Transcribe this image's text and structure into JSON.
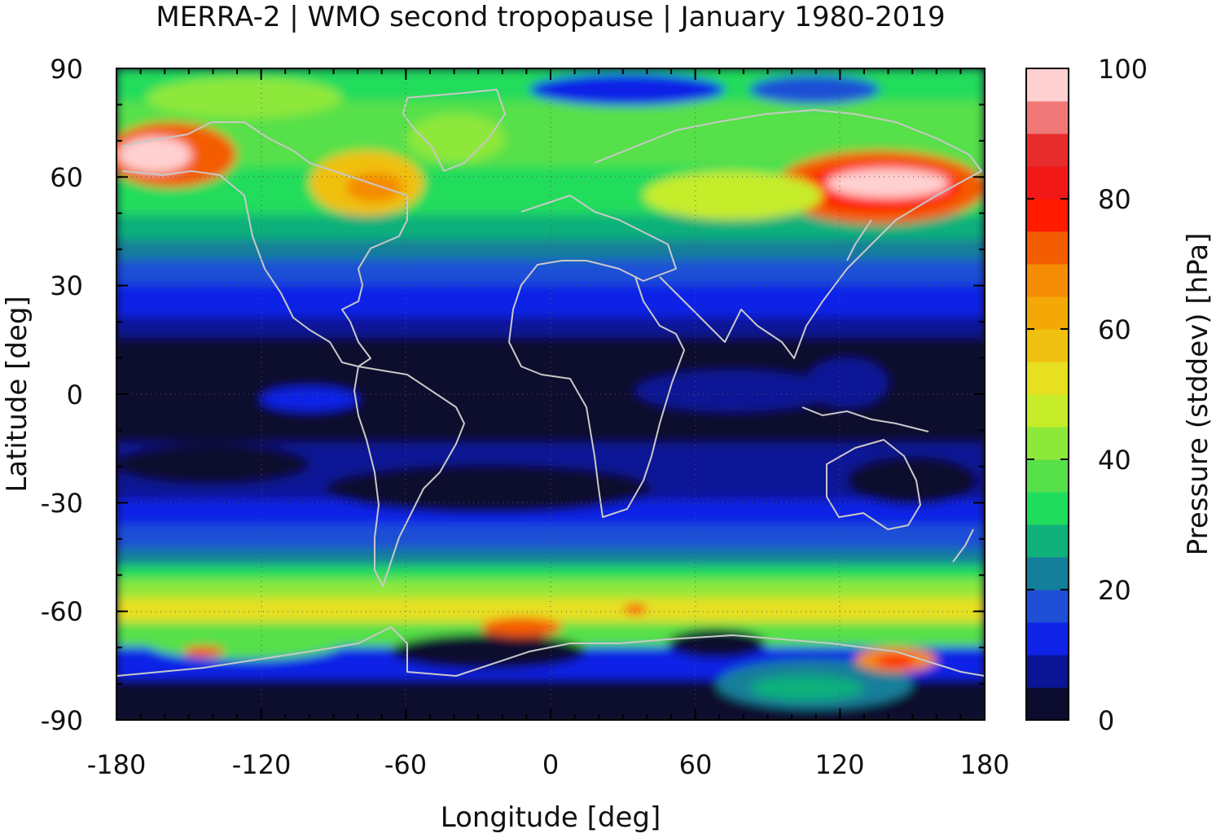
{
  "chart_data": {
    "type": "heatmap",
    "title": "MERRA-2 | WMO second tropopause | January 1980-2019",
    "xlabel": "Longitude [deg]",
    "ylabel": "Latitude [deg]",
    "xlim": [
      -180,
      180
    ],
    "ylim": [
      -90,
      90
    ],
    "x_ticks": [
      -180,
      -120,
      -60,
      0,
      60,
      120,
      180
    ],
    "x_tick_labels": [
      "-180",
      "-120",
      "-60",
      "0",
      "60",
      "120",
      "180"
    ],
    "y_ticks": [
      90,
      60,
      30,
      0,
      -30,
      -60,
      -90
    ],
    "y_tick_labels": [
      "90",
      "60",
      "30",
      "0",
      "-30",
      "-60",
      "-90"
    ],
    "grid": true,
    "colorbar": {
      "label": "Pressure (stddev) [hPa]",
      "range": [
        0,
        100
      ],
      "ticks": [
        0,
        20,
        40,
        60,
        80,
        100
      ],
      "tick_labels": [
        "0",
        "20",
        "40",
        "60",
        "80",
        "100"
      ],
      "levels": [
        0,
        5,
        10,
        15,
        20,
        25,
        30,
        35,
        40,
        45,
        50,
        55,
        60,
        65,
        70,
        75,
        80,
        85,
        90,
        95,
        100
      ],
      "colors": [
        "#0b0b2e",
        "#0a1596",
        "#0f24e6",
        "#1e4fd6",
        "#137f9a",
        "#10b07a",
        "#20dc5c",
        "#56e04a",
        "#8ee83a",
        "#c6ec2a",
        "#e6e020",
        "#f0c010",
        "#f4a808",
        "#f48c04",
        "#f45c02",
        "#ff1a00",
        "#f21818",
        "#e82c2c",
        "#f07878",
        "#ffd0d0"
      ]
    },
    "field_description_bands": [
      {
        "lat_range": [
          -10,
          20
        ],
        "stddev_approx": 2
      },
      {
        "lat_range": [
          20,
          35
        ],
        "stddev_approx": 10
      },
      {
        "lat_range": [
          -45,
          -10
        ],
        "stddev_approx": 8
      },
      {
        "lat_range": [
          45,
          75
        ],
        "stddev_approx": 40
      },
      {
        "lat_range": [
          -70,
          -55
        ],
        "stddev_approx": 45
      }
    ]
  },
  "colors": {
    "coastline": "#c8c8c8",
    "frame": "#000000"
  }
}
